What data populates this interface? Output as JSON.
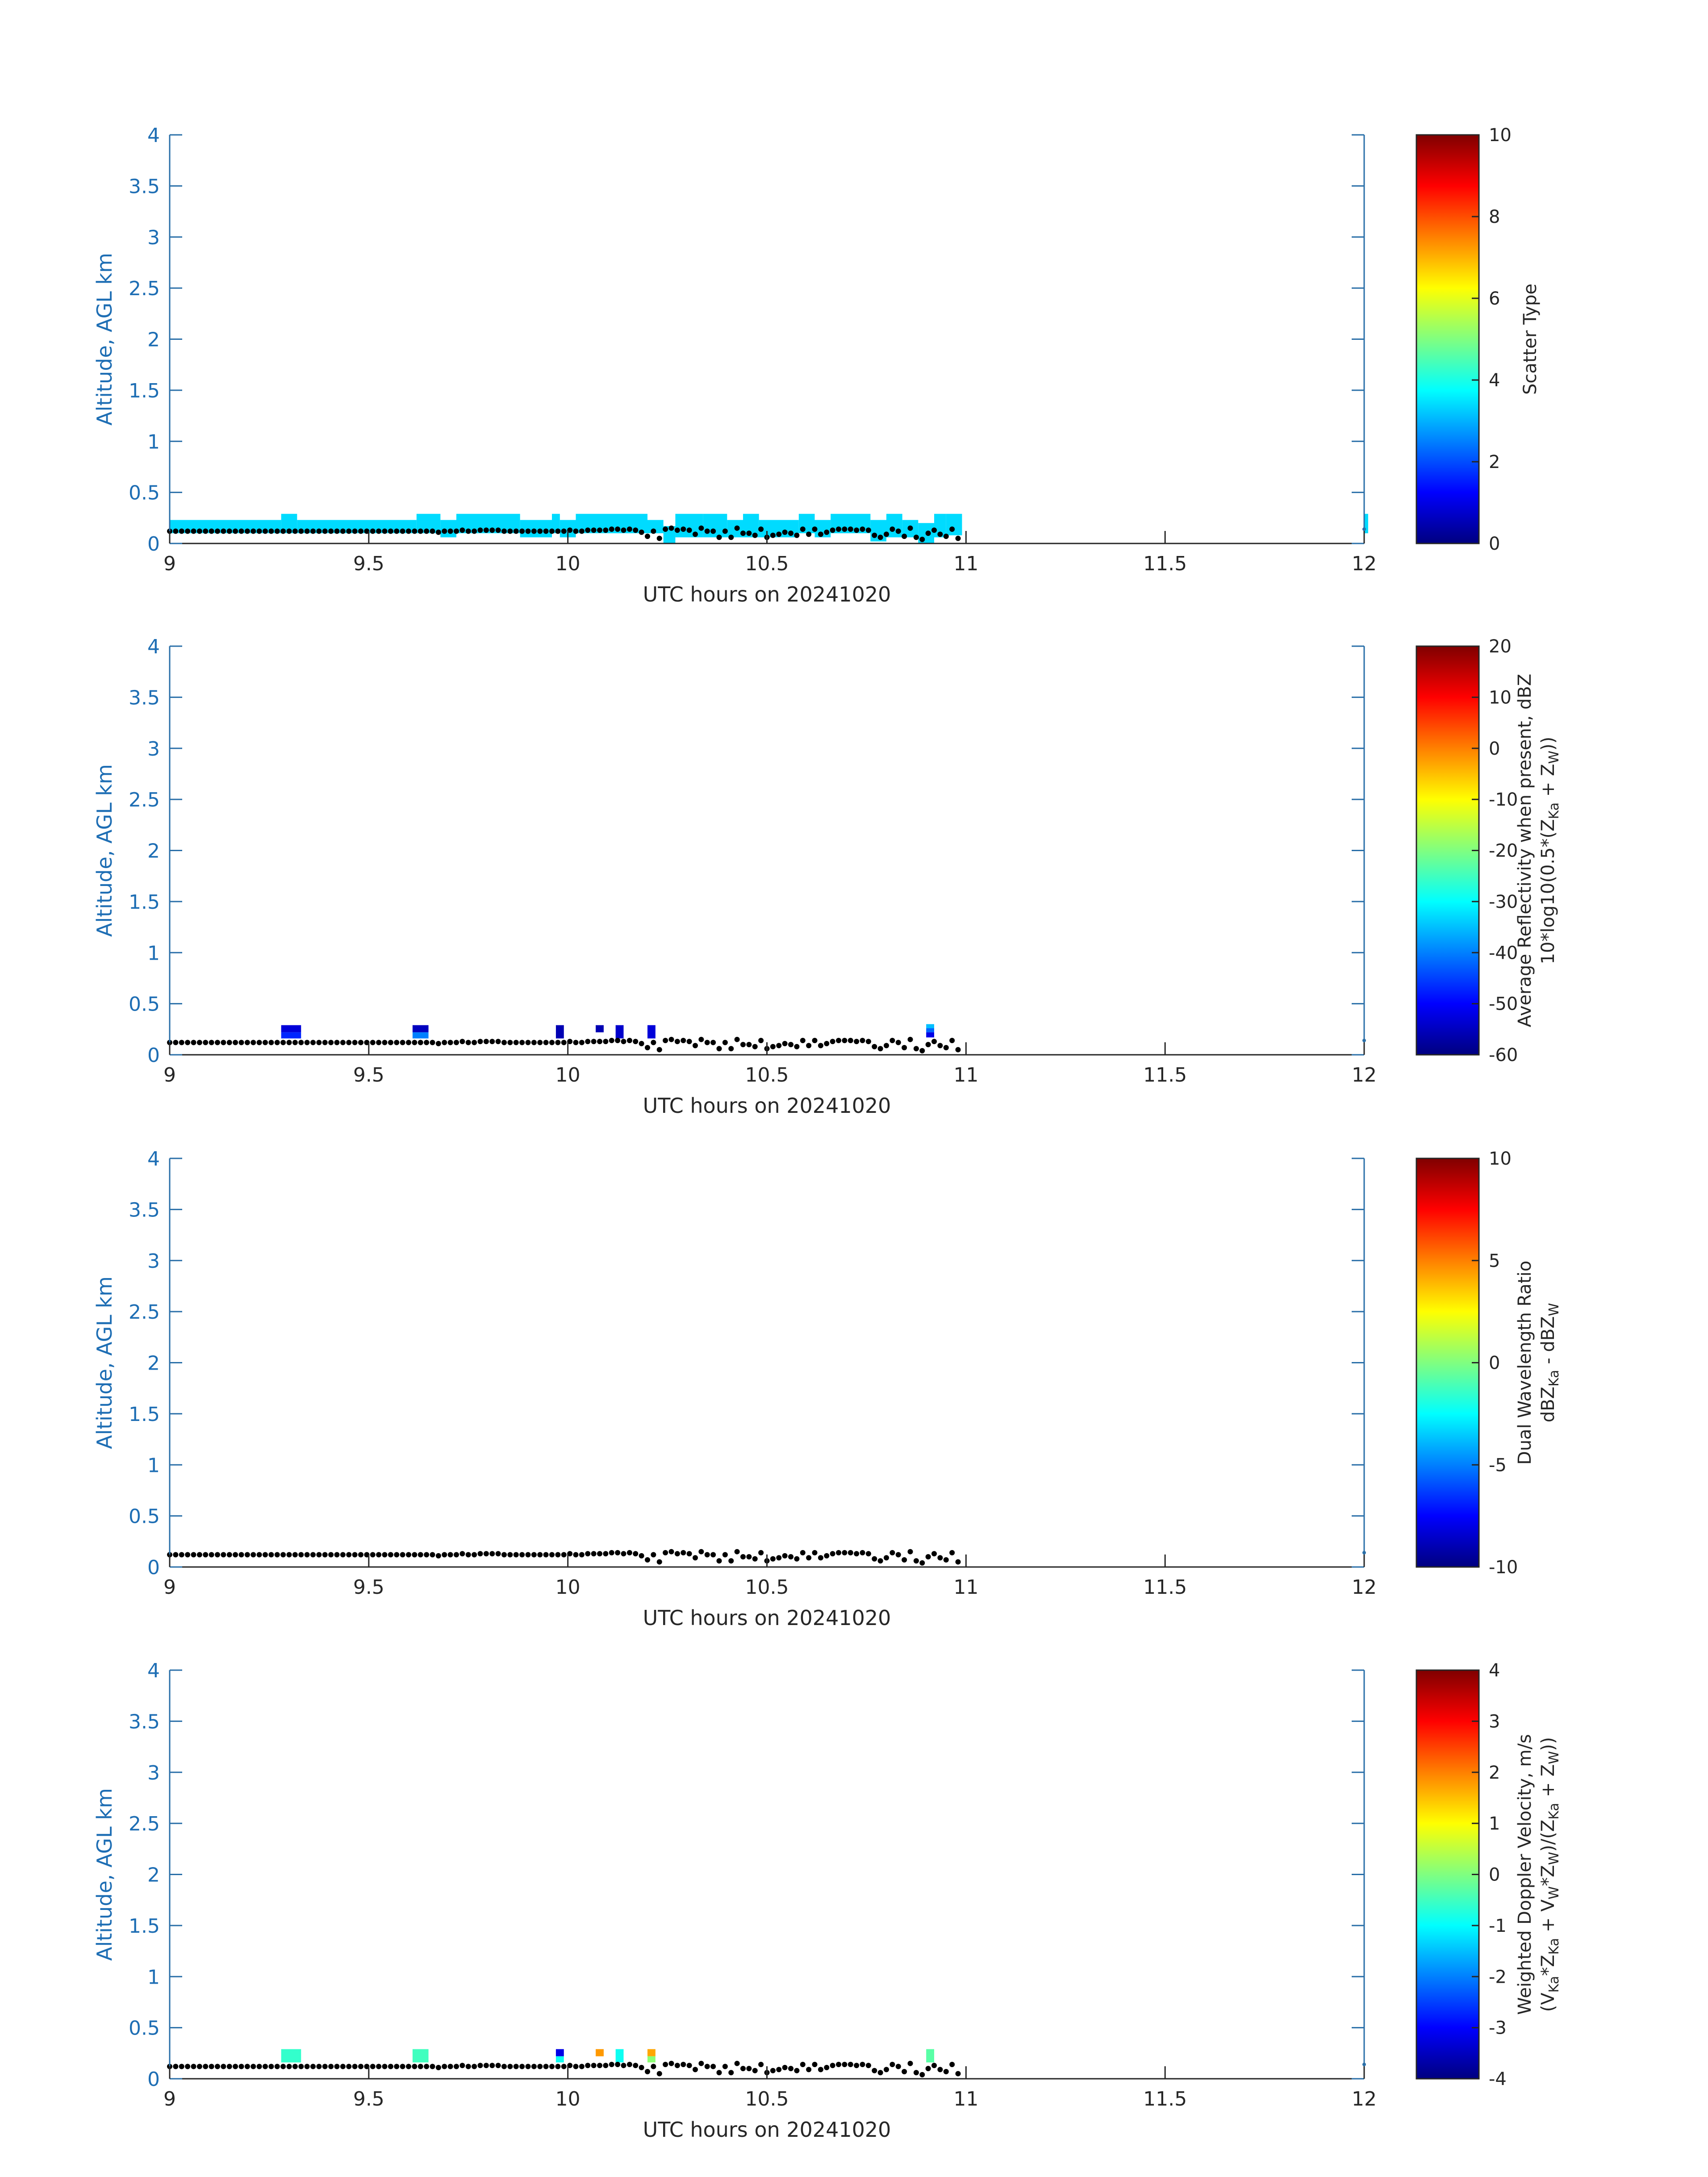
{
  "colors": {
    "axis": "#2a6fa8",
    "tick_text": "#1e6eb4",
    "ylabel_text": "#1e6eb4",
    "xlabel_text": "#262626",
    "cbar_text": "#262626",
    "ground_dots": "#000000"
  },
  "chart_data": [
    {
      "type": "heatmap",
      "title": "",
      "xlabel": "UTC hours on 20241020",
      "ylabel": "Altitude, AGL km",
      "xlim": [
        9,
        12
      ],
      "ylim": [
        0,
        4
      ],
      "xticks": [
        "9",
        "9.5",
        "10",
        "10.5",
        "11",
        "11.5",
        "12"
      ],
      "yticks": [
        "0",
        "0.5",
        "1",
        "1.5",
        "2",
        "2.5",
        "3",
        "3.5",
        "4"
      ],
      "colorbar": {
        "label": [
          "Scatter Type"
        ],
        "clim": [
          0,
          10
        ],
        "ticks": [
          "0",
          "2",
          "4",
          "6",
          "8",
          "10"
        ]
      },
      "cells": [
        {
          "x0": 9.0,
          "x1": 9.28,
          "y0": 0.1,
          "y1": 0.23,
          "value": 3.4
        },
        {
          "x0": 9.28,
          "x1": 9.32,
          "y0": 0.1,
          "y1": 0.29,
          "value": 3.4
        },
        {
          "x0": 9.32,
          "x1": 9.62,
          "y0": 0.1,
          "y1": 0.23,
          "value": 3.4
        },
        {
          "x0": 9.62,
          "x1": 9.68,
          "y0": 0.1,
          "y1": 0.29,
          "value": 3.4
        },
        {
          "x0": 9.68,
          "x1": 9.72,
          "y0": 0.06,
          "y1": 0.23,
          "value": 3.4
        },
        {
          "x0": 9.72,
          "x1": 9.88,
          "y0": 0.1,
          "y1": 0.29,
          "value": 3.4
        },
        {
          "x0": 9.88,
          "x1": 9.96,
          "y0": 0.06,
          "y1": 0.23,
          "value": 3.4
        },
        {
          "x0": 9.96,
          "x1": 9.98,
          "y0": 0.1,
          "y1": 0.29,
          "value": 3.4
        },
        {
          "x0": 9.98,
          "x1": 10.02,
          "y0": 0.06,
          "y1": 0.23,
          "value": 3.4
        },
        {
          "x0": 10.02,
          "x1": 10.2,
          "y0": 0.1,
          "y1": 0.29,
          "value": 3.4
        },
        {
          "x0": 10.2,
          "x1": 10.24,
          "y0": 0.1,
          "y1": 0.23,
          "value": 3.4
        },
        {
          "x0": 10.24,
          "x1": 10.27,
          "y0": 0.0,
          "y1": 0.17,
          "value": 3.4
        },
        {
          "x0": 10.27,
          "x1": 10.34,
          "y0": 0.06,
          "y1": 0.29,
          "value": 3.4
        },
        {
          "x0": 10.34,
          "x1": 10.4,
          "y0": 0.06,
          "y1": 0.29,
          "value": 3.4
        },
        {
          "x0": 10.4,
          "x1": 10.44,
          "y0": 0.06,
          "y1": 0.23,
          "value": 3.4
        },
        {
          "x0": 10.44,
          "x1": 10.48,
          "y0": 0.06,
          "y1": 0.29,
          "value": 3.4
        },
        {
          "x0": 10.48,
          "x1": 10.58,
          "y0": 0.06,
          "y1": 0.23,
          "value": 3.4
        },
        {
          "x0": 10.58,
          "x1": 10.62,
          "y0": 0.1,
          "y1": 0.29,
          "value": 3.4
        },
        {
          "x0": 10.62,
          "x1": 10.66,
          "y0": 0.06,
          "y1": 0.23,
          "value": 3.4
        },
        {
          "x0": 10.66,
          "x1": 10.76,
          "y0": 0.1,
          "y1": 0.29,
          "value": 3.4
        },
        {
          "x0": 10.76,
          "x1": 10.8,
          "y0": 0.02,
          "y1": 0.23,
          "value": 3.4
        },
        {
          "x0": 10.8,
          "x1": 10.84,
          "y0": 0.06,
          "y1": 0.29,
          "value": 3.4
        },
        {
          "x0": 10.84,
          "x1": 10.88,
          "y0": 0.06,
          "y1": 0.23,
          "value": 3.4
        },
        {
          "x0": 10.88,
          "x1": 10.92,
          "y0": 0.0,
          "y1": 0.2,
          "value": 3.4
        },
        {
          "x0": 10.92,
          "x1": 10.95,
          "y0": 0.06,
          "y1": 0.29,
          "value": 3.4
        },
        {
          "x0": 10.95,
          "x1": 10.99,
          "y0": 0.08,
          "y1": 0.29,
          "value": 3.4
        },
        {
          "x0": 12.0,
          "x1": 12.01,
          "y0": 0.1,
          "y1": 0.29,
          "value": 3.4
        }
      ]
    },
    {
      "type": "heatmap",
      "title": "",
      "xlabel": "UTC hours on 20241020",
      "ylabel": "Altitude, AGL km",
      "xlim": [
        9,
        12
      ],
      "ylim": [
        0,
        4
      ],
      "xticks": [
        "9",
        "9.5",
        "10",
        "10.5",
        "11",
        "11.5",
        "12"
      ],
      "yticks": [
        "0",
        "0.5",
        "1",
        "1.5",
        "2",
        "2.5",
        "3",
        "3.5",
        "4"
      ],
      "colorbar": {
        "label": [
          "Average Reflectivity when present, dBZ",
          "10*log10(0.5*(Z",
          "Ka",
          " + Z",
          "W",
          "))"
        ],
        "clim": [
          -60,
          20
        ],
        "ticks": [
          "-60",
          "-50",
          "-40",
          "-30",
          "-20",
          "-10",
          "0",
          "10",
          "20"
        ]
      },
      "cells": [
        {
          "x0": 9.28,
          "x1": 9.33,
          "y0": 0.22,
          "y1": 0.29,
          "value": -53
        },
        {
          "x0": 9.28,
          "x1": 9.33,
          "y0": 0.16,
          "y1": 0.22,
          "value": -47
        },
        {
          "x0": 9.61,
          "x1": 9.65,
          "y0": 0.22,
          "y1": 0.29,
          "value": -55
        },
        {
          "x0": 9.61,
          "x1": 9.65,
          "y0": 0.16,
          "y1": 0.22,
          "value": -40
        },
        {
          "x0": 9.97,
          "x1": 9.99,
          "y0": 0.16,
          "y1": 0.29,
          "value": -56
        },
        {
          "x0": 10.07,
          "x1": 10.09,
          "y0": 0.22,
          "y1": 0.29,
          "value": -56
        },
        {
          "x0": 10.12,
          "x1": 10.14,
          "y0": 0.16,
          "y1": 0.29,
          "value": -54
        },
        {
          "x0": 10.2,
          "x1": 10.22,
          "y0": 0.16,
          "y1": 0.29,
          "value": -53
        },
        {
          "x0": 10.9,
          "x1": 10.92,
          "y0": 0.26,
          "y1": 0.3,
          "value": -35
        },
        {
          "x0": 10.9,
          "x1": 10.92,
          "y0": 0.22,
          "y1": 0.26,
          "value": -42
        },
        {
          "x0": 10.9,
          "x1": 10.92,
          "y0": 0.17,
          "y1": 0.22,
          "value": -52
        }
      ]
    },
    {
      "type": "heatmap",
      "title": "",
      "xlabel": "UTC hours on 20241020",
      "ylabel": "Altitude, AGL km",
      "xlim": [
        9,
        12
      ],
      "ylim": [
        0,
        4
      ],
      "xticks": [
        "9",
        "9.5",
        "10",
        "10.5",
        "11",
        "11.5",
        "12"
      ],
      "yticks": [
        "0",
        "0.5",
        "1",
        "1.5",
        "2",
        "2.5",
        "3",
        "3.5",
        "4"
      ],
      "colorbar": {
        "label": [
          "Dual Wavelength Ratio",
          "dBZ",
          "Ka",
          " - dBZ",
          "W"
        ],
        "clim": [
          -10,
          10
        ],
        "ticks": [
          "-10",
          "-5",
          "0",
          "5",
          "10"
        ]
      },
      "cells": []
    },
    {
      "type": "heatmap",
      "title": "",
      "xlabel": "UTC hours on 20241020",
      "ylabel": "Altitude, AGL km",
      "xlim": [
        9,
        12
      ],
      "ylim": [
        0,
        4
      ],
      "xticks": [
        "9",
        "9.5",
        "10",
        "10.5",
        "11",
        "11.5",
        "12"
      ],
      "yticks": [
        "0",
        "0.5",
        "1",
        "1.5",
        "2",
        "2.5",
        "3",
        "3.5",
        "4"
      ],
      "colorbar": {
        "label": [
          "Weighted Doppler Velocity, m/s",
          "(V",
          "Ka",
          "*Z",
          "Ka",
          " + V",
          "W",
          "*Z",
          "W",
          ")/(Z",
          "Ka",
          " + Z",
          "W",
          "))"
        ],
        "clim": [
          -4,
          4
        ],
        "ticks": [
          "-4",
          "-3",
          "-2",
          "-1",
          "0",
          "1",
          "2",
          "3",
          "4"
        ]
      },
      "cells": [
        {
          "x0": 9.28,
          "x1": 9.33,
          "y0": 0.16,
          "y1": 0.29,
          "value": -0.6
        },
        {
          "x0": 9.61,
          "x1": 9.65,
          "y0": 0.16,
          "y1": 0.29,
          "value": -0.5
        },
        {
          "x0": 9.97,
          "x1": 9.99,
          "y0": 0.22,
          "y1": 0.29,
          "value": -3.2
        },
        {
          "x0": 9.97,
          "x1": 9.99,
          "y0": 0.16,
          "y1": 0.22,
          "value": -0.9
        },
        {
          "x0": 10.07,
          "x1": 10.09,
          "y0": 0.22,
          "y1": 0.29,
          "value": 1.8
        },
        {
          "x0": 10.12,
          "x1": 10.14,
          "y0": 0.16,
          "y1": 0.29,
          "value": -0.9
        },
        {
          "x0": 10.2,
          "x1": 10.22,
          "y0": 0.22,
          "y1": 0.29,
          "value": 1.7
        },
        {
          "x0": 10.2,
          "x1": 10.22,
          "y0": 0.16,
          "y1": 0.22,
          "value": 0.1
        },
        {
          "x0": 10.9,
          "x1": 10.92,
          "y0": 0.16,
          "y1": 0.29,
          "value": -0.3
        }
      ]
    }
  ],
  "ground_series": {
    "x": [
      9.0,
      9.015,
      9.03,
      9.045,
      9.06,
      9.075,
      9.09,
      9.105,
      9.12,
      9.135,
      9.15,
      9.165,
      9.18,
      9.195,
      9.21,
      9.225,
      9.24,
      9.255,
      9.27,
      9.285,
      9.3,
      9.315,
      9.33,
      9.345,
      9.36,
      9.375,
      9.39,
      9.405,
      9.42,
      9.435,
      9.45,
      9.465,
      9.48,
      9.495,
      9.51,
      9.525,
      9.54,
      9.555,
      9.57,
      9.585,
      9.6,
      9.615,
      9.63,
      9.645,
      9.66,
      9.675,
      9.69,
      9.705,
      9.72,
      9.735,
      9.75,
      9.765,
      9.78,
      9.795,
      9.81,
      9.825,
      9.84,
      9.855,
      9.87,
      9.885,
      9.9,
      9.915,
      9.93,
      9.945,
      9.96,
      9.975,
      9.99,
      10.005,
      10.02,
      10.035,
      10.05,
      10.065,
      10.08,
      10.095,
      10.11,
      10.125,
      10.14,
      10.155,
      10.17,
      10.185,
      10.2,
      10.215,
      10.23,
      10.245,
      10.26,
      10.275,
      10.29,
      10.305,
      10.32,
      10.335,
      10.35,
      10.365,
      10.38,
      10.395,
      10.41,
      10.425,
      10.44,
      10.455,
      10.47,
      10.485,
      10.5,
      10.515,
      10.53,
      10.545,
      10.56,
      10.575,
      10.59,
      10.605,
      10.62,
      10.635,
      10.65,
      10.665,
      10.68,
      10.695,
      10.71,
      10.725,
      10.74,
      10.755,
      10.77,
      10.785,
      10.8,
      10.815,
      10.83,
      10.845,
      10.86,
      10.875,
      10.89,
      10.905,
      10.92,
      10.935,
      10.95,
      10.965,
      10.98,
      12.0
    ],
    "y": [
      0.12,
      0.12,
      0.12,
      0.12,
      0.12,
      0.12,
      0.12,
      0.12,
      0.12,
      0.12,
      0.12,
      0.12,
      0.12,
      0.12,
      0.12,
      0.12,
      0.12,
      0.12,
      0.12,
      0.12,
      0.12,
      0.12,
      0.12,
      0.12,
      0.12,
      0.12,
      0.12,
      0.12,
      0.12,
      0.12,
      0.12,
      0.12,
      0.12,
      0.12,
      0.12,
      0.12,
      0.12,
      0.12,
      0.12,
      0.12,
      0.12,
      0.12,
      0.12,
      0.12,
      0.12,
      0.11,
      0.12,
      0.12,
      0.12,
      0.13,
      0.12,
      0.12,
      0.13,
      0.13,
      0.13,
      0.13,
      0.12,
      0.12,
      0.12,
      0.12,
      0.12,
      0.12,
      0.12,
      0.12,
      0.12,
      0.12,
      0.12,
      0.13,
      0.12,
      0.12,
      0.13,
      0.13,
      0.13,
      0.13,
      0.14,
      0.14,
      0.13,
      0.14,
      0.13,
      0.11,
      0.07,
      0.12,
      0.05,
      0.14,
      0.15,
      0.13,
      0.14,
      0.13,
      0.09,
      0.15,
      0.12,
      0.12,
      0.06,
      0.12,
      0.06,
      0.15,
      0.1,
      0.1,
      0.08,
      0.14,
      0.06,
      0.08,
      0.09,
      0.11,
      0.1,
      0.08,
      0.14,
      0.09,
      0.14,
      0.09,
      0.11,
      0.13,
      0.14,
      0.14,
      0.14,
      0.13,
      0.14,
      0.13,
      0.08,
      0.06,
      0.09,
      0.14,
      0.12,
      0.07,
      0.15,
      0.06,
      0.04,
      0.1,
      0.13,
      0.09,
      0.07,
      0.14,
      0.05,
      0.14
    ]
  }
}
